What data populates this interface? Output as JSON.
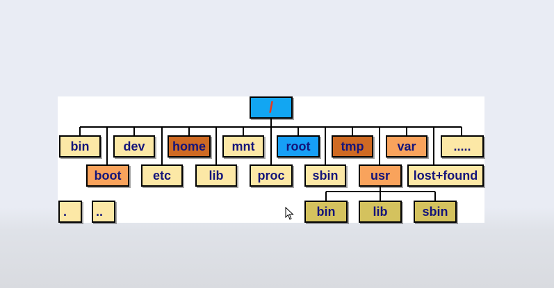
{
  "colors": {
    "root_fill": "#12a6f2",
    "light_fill": "#fce8a6",
    "orange_fill": "#f9a35c",
    "dark_orange_fill": "#cf6a23",
    "blue_fill": "#169ff6",
    "olive_fill": "#d4c25e",
    "text": "#14147a",
    "root_text": "#e8361c"
  },
  "tree": {
    "root": "/",
    "row1": [
      "bin",
      "dev",
      "home",
      "mnt",
      "root",
      "tmp",
      "var",
      "....."
    ],
    "row2": [
      "boot",
      "etc",
      "lib",
      "proc",
      "sbin",
      "usr",
      "lost+found"
    ],
    "usr_children": [
      "bin",
      "lib",
      "sbin"
    ],
    "dot_entries": [
      ".",
      ".."
    ]
  },
  "cursor_icon": "mouse-pointer-icon"
}
